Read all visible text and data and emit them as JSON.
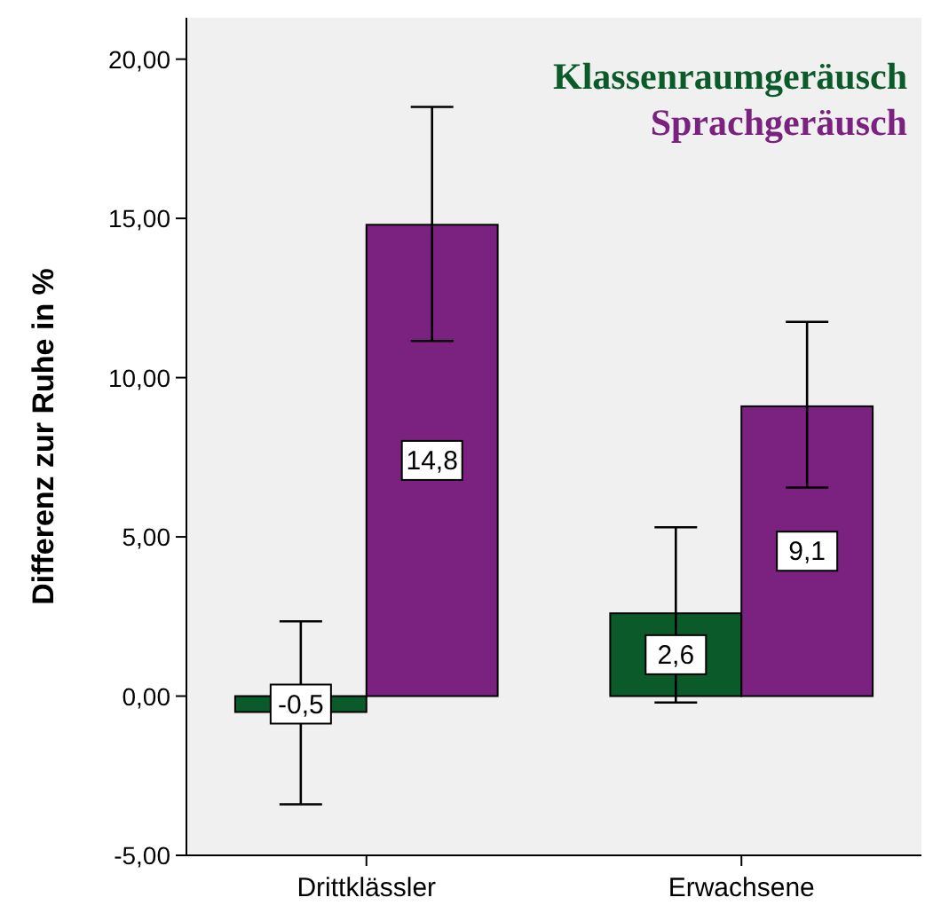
{
  "chart_data": {
    "type": "bar",
    "ylabel": "Differenz zur Ruhe in %",
    "categories": [
      "Drittklässler",
      "Erwachsene"
    ],
    "series": [
      {
        "name": "Klassenraumgeräusch",
        "color": "#0b5a2a",
        "values": [
          -0.5,
          2.6
        ],
        "value_labels": [
          "-0,5",
          "2,6"
        ],
        "errors": [
          [
            -3.4,
            2.35
          ],
          [
            -0.2,
            5.3
          ]
        ]
      },
      {
        "name": "Sprachgeräusch",
        "color": "#7b2180",
        "values": [
          14.8,
          9.1
        ],
        "value_labels": [
          "14,8",
          "9,1"
        ],
        "errors": [
          [
            11.15,
            18.5
          ],
          [
            6.55,
            11.75
          ]
        ]
      }
    ],
    "ylim": [
      -5,
      21.3
    ],
    "yticks": [
      {
        "value": -5,
        "label": "-5,00"
      },
      {
        "value": 0,
        "label": "0,00"
      },
      {
        "value": 5,
        "label": "5,00"
      },
      {
        "value": 10,
        "label": "10,00"
      },
      {
        "value": 15,
        "label": "15,00"
      },
      {
        "value": 20,
        "label": "20,00"
      }
    ],
    "grid": false,
    "legend": "top right"
  }
}
